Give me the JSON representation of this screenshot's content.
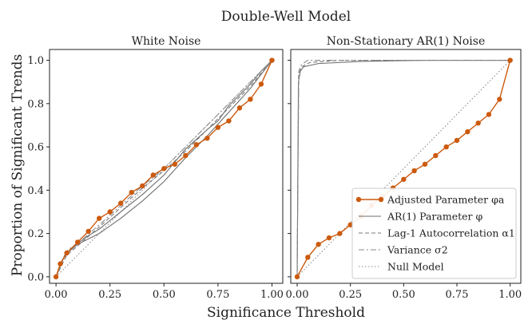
{
  "figure": {
    "suptitle": "Double-Well Model",
    "xlabel": "Significance Threshold",
    "ylabel": "Proportion of Significant Trends"
  },
  "colors": {
    "adjusted": "#cc5a0e",
    "ar1": "#6e6e6e",
    "lag1": "#7a7a7a",
    "variance": "#8a8a8a",
    "null": "#8c8c8c",
    "frame": "#222222"
  },
  "chart_data": [
    {
      "type": "line",
      "title": "White Noise",
      "xlim": [
        -0.03,
        1.05
      ],
      "ylim": [
        -0.03,
        1.05
      ],
      "xticks": [
        "0.00",
        "0.25",
        "0.50",
        "0.75",
        "1.00"
      ],
      "yticks": [
        "0.0",
        "0.2",
        "0.4",
        "0.6",
        "0.8",
        "1.0"
      ],
      "show_yticklabels": true,
      "legend": null,
      "series": [
        {
          "key": "adjusted",
          "name": "Adjusted Parameter φa",
          "style": "line-marker",
          "points": [
            [
              0,
              0
            ],
            [
              0.02,
              0.06
            ],
            [
              0.05,
              0.11
            ],
            [
              0.1,
              0.16
            ],
            [
              0.15,
              0.21
            ],
            [
              0.2,
              0.27
            ],
            [
              0.25,
              0.3
            ],
            [
              0.3,
              0.34
            ],
            [
              0.35,
              0.39
            ],
            [
              0.4,
              0.42
            ],
            [
              0.45,
              0.47
            ],
            [
              0.5,
              0.5
            ],
            [
              0.55,
              0.52
            ],
            [
              0.6,
              0.56
            ],
            [
              0.65,
              0.61
            ],
            [
              0.7,
              0.64
            ],
            [
              0.75,
              0.69
            ],
            [
              0.8,
              0.72
            ],
            [
              0.85,
              0.78
            ],
            [
              0.9,
              0.82
            ],
            [
              0.95,
              0.89
            ],
            [
              1.0,
              1.0
            ]
          ]
        },
        {
          "key": "ar1",
          "name": "AR(1) Parameter φ",
          "style": "solid",
          "points": [
            [
              0,
              0
            ],
            [
              0.03,
              0.08
            ],
            [
              0.08,
              0.14
            ],
            [
              0.15,
              0.19
            ],
            [
              0.2,
              0.22
            ],
            [
              0.3,
              0.3
            ],
            [
              0.4,
              0.38
            ],
            [
              0.5,
              0.47
            ],
            [
              0.55,
              0.53
            ],
            [
              0.6,
              0.59
            ],
            [
              0.7,
              0.68
            ],
            [
              0.75,
              0.72
            ],
            [
              0.8,
              0.79
            ],
            [
              0.85,
              0.84
            ],
            [
              0.9,
              0.89
            ],
            [
              0.95,
              0.95
            ],
            [
              1.0,
              1.0
            ]
          ]
        },
        {
          "key": "ar1b",
          "name": "",
          "style": "solid",
          "points": [
            [
              0,
              0
            ],
            [
              0.04,
              0.1
            ],
            [
              0.1,
              0.15
            ],
            [
              0.2,
              0.2
            ],
            [
              0.3,
              0.27
            ],
            [
              0.4,
              0.35
            ],
            [
              0.5,
              0.44
            ],
            [
              0.6,
              0.55
            ],
            [
              0.7,
              0.65
            ],
            [
              0.8,
              0.76
            ],
            [
              0.9,
              0.87
            ],
            [
              1.0,
              1.0
            ]
          ]
        },
        {
          "key": "lag1",
          "name": "Lag-1 Autocorrelation α1",
          "style": "dashed",
          "points": [
            [
              0,
              0
            ],
            [
              0.05,
              0.1
            ],
            [
              0.12,
              0.16
            ],
            [
              0.2,
              0.23
            ],
            [
              0.3,
              0.32
            ],
            [
              0.4,
              0.41
            ],
            [
              0.5,
              0.49
            ],
            [
              0.6,
              0.58
            ],
            [
              0.7,
              0.68
            ],
            [
              0.8,
              0.78
            ],
            [
              0.9,
              0.88
            ],
            [
              1.0,
              1.0
            ]
          ]
        },
        {
          "key": "variance",
          "name": "Variance σ2",
          "style": "dashdot",
          "points": [
            [
              0,
              0
            ],
            [
              0.05,
              0.12
            ],
            [
              0.12,
              0.17
            ],
            [
              0.2,
              0.24
            ],
            [
              0.3,
              0.33
            ],
            [
              0.4,
              0.42
            ],
            [
              0.5,
              0.5
            ],
            [
              0.6,
              0.6
            ],
            [
              0.7,
              0.7
            ],
            [
              0.8,
              0.8
            ],
            [
              0.9,
              0.9
            ],
            [
              1.0,
              1.0
            ]
          ]
        },
        {
          "key": "null",
          "name": "Null Model",
          "style": "dotted",
          "points": [
            [
              0,
              0
            ],
            [
              1,
              1
            ]
          ]
        }
      ]
    },
    {
      "type": "line",
      "title": "Non-Stationary AR(1) Noise",
      "xlim": [
        -0.03,
        1.05
      ],
      "ylim": [
        -0.03,
        1.05
      ],
      "xticks": [
        "0.00",
        "0.25",
        "0.50",
        "0.75",
        "1.00"
      ],
      "yticks": [
        "0.0",
        "0.2",
        "0.4",
        "0.6",
        "0.8",
        "1.0"
      ],
      "show_yticklabels": false,
      "legend": "lower-right",
      "series": [
        {
          "key": "adjusted",
          "name": "Adjusted Parameter φa",
          "style": "line-marker",
          "points": [
            [
              0,
              0
            ],
            [
              0.05,
              0.09
            ],
            [
              0.1,
              0.15
            ],
            [
              0.15,
              0.18
            ],
            [
              0.2,
              0.2
            ],
            [
              0.25,
              0.24
            ],
            [
              0.3,
              0.28
            ],
            [
              0.35,
              0.33
            ],
            [
              0.4,
              0.37
            ],
            [
              0.45,
              0.41
            ],
            [
              0.5,
              0.45
            ],
            [
              0.55,
              0.49
            ],
            [
              0.6,
              0.52
            ],
            [
              0.65,
              0.56
            ],
            [
              0.7,
              0.6
            ],
            [
              0.75,
              0.63
            ],
            [
              0.8,
              0.67
            ],
            [
              0.85,
              0.71
            ],
            [
              0.9,
              0.75
            ],
            [
              0.95,
              0.82
            ],
            [
              1.0,
              1.0
            ]
          ]
        },
        {
          "key": "ar1",
          "name": "AR(1) Parameter φ",
          "style": "solid",
          "points": [
            [
              0,
              0
            ],
            [
              0.006,
              0.9
            ],
            [
              0.015,
              0.95
            ],
            [
              0.03,
              0.97
            ],
            [
              0.1,
              0.985
            ],
            [
              0.3,
              0.995
            ],
            [
              0.6,
              1.0
            ],
            [
              1.0,
              1.0
            ]
          ]
        },
        {
          "key": "lag1",
          "name": "Lag-1 Autocorrelation α1",
          "style": "dashed",
          "points": [
            [
              0,
              0
            ],
            [
              0.007,
              0.93
            ],
            [
              0.02,
              0.97
            ],
            [
              0.06,
              0.99
            ],
            [
              0.2,
              1.0
            ],
            [
              1.0,
              1.0
            ]
          ]
        },
        {
          "key": "variance",
          "name": "Variance σ2",
          "style": "dashdot",
          "points": [
            [
              0,
              0
            ],
            [
              0.008,
              0.95
            ],
            [
              0.02,
              0.98
            ],
            [
              0.05,
              1.0
            ],
            [
              1.0,
              1.0
            ]
          ]
        },
        {
          "key": "null",
          "name": "Null Model",
          "style": "dotted",
          "points": [
            [
              0,
              0
            ],
            [
              1,
              1
            ]
          ]
        }
      ]
    }
  ]
}
